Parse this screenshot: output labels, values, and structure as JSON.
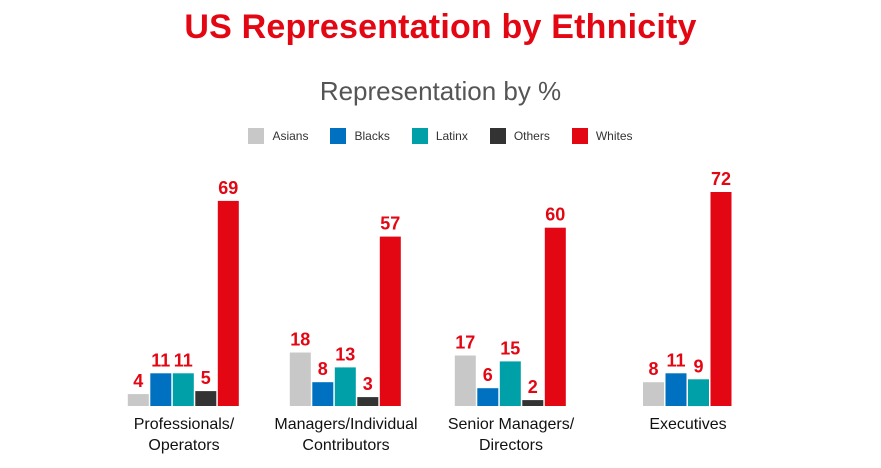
{
  "chart_data": {
    "type": "bar",
    "title": "US Representation by Ethnicity",
    "subtitle": "Representation by %",
    "categories": [
      [
        "Professionals/",
        "Operators"
      ],
      [
        "Managers/Individual",
        "Contributors"
      ],
      [
        "Senior Managers/",
        "Directors"
      ],
      [
        "Executives"
      ]
    ],
    "series": [
      {
        "name": "Asians",
        "color": "#c8c8c8",
        "values": [
          4,
          18,
          17,
          8
        ]
      },
      {
        "name": "Blacks",
        "color": "#0070c0",
        "values": [
          11,
          8,
          6,
          11
        ]
      },
      {
        "name": "Latinx",
        "color": "#00a0a8",
        "values": [
          11,
          13,
          15,
          9
        ]
      },
      {
        "name": "Others",
        "color": "#333333",
        "values": [
          5,
          3,
          2,
          null
        ]
      },
      {
        "name": "Whites",
        "color": "#e30613",
        "values": [
          69,
          57,
          60,
          72
        ]
      }
    ],
    "ylim": [
      0,
      72
    ],
    "grid": false,
    "legend_position": "top-center",
    "value_label_color": "#e30613"
  }
}
